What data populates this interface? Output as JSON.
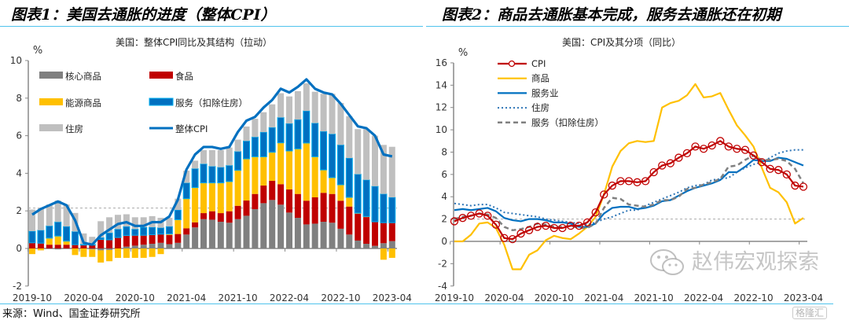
{
  "figures": {
    "left_title": "图表1：美国去通胀的进度（整体CPI）",
    "right_title": "图表2：商品去通胀基本完成，服务去通胀还在初期",
    "source": "来源：Wind、国金证券研究所"
  },
  "watermark": {
    "text": "赵伟宏观探索",
    "icon": "wechat-icon",
    "logo": "格隆汇"
  },
  "chart_data": [
    {
      "type": "bar",
      "stacked": true,
      "title": "美国：整体CPI同比及其结构（拉动）",
      "ylabel": "%",
      "ylim": [
        -2,
        10
      ],
      "yticks": [
        "-2",
        "0",
        "2",
        "4",
        "6",
        "8",
        "10"
      ],
      "xticks": [
        "2019-10",
        "2020-04",
        "2020-10",
        "2021-04",
        "2021-10",
        "2022-04",
        "2022-10",
        "2023-04"
      ],
      "reference_line": 2.15,
      "legend_placement": "top-left",
      "x": [
        "2019-10",
        "2019-11",
        "2019-12",
        "2020-01",
        "2020-02",
        "2020-03",
        "2020-04",
        "2020-05",
        "2020-06",
        "2020-07",
        "2020-08",
        "2020-09",
        "2020-10",
        "2020-11",
        "2020-12",
        "2021-01",
        "2021-02",
        "2021-03",
        "2021-04",
        "2021-05",
        "2021-06",
        "2021-07",
        "2021-08",
        "2021-09",
        "2021-10",
        "2021-11",
        "2021-12",
        "2022-01",
        "2022-02",
        "2022-03",
        "2022-04",
        "2022-05",
        "2022-06",
        "2022-07",
        "2022-08",
        "2022-09",
        "2022-10",
        "2022-11",
        "2022-12",
        "2023-01",
        "2023-02",
        "2023-03",
        "2023-04"
      ],
      "series": [
        {
          "name": "核心商品",
          "kind": "bar",
          "color": "#808080",
          "values": [
            0,
            0,
            0,
            -0.05,
            0,
            0,
            0,
            -0.05,
            -0.1,
            -0.08,
            0,
            0.1,
            0.15,
            0.2,
            0.25,
            0.3,
            0.23,
            0.3,
            0.74,
            1.12,
            1.56,
            1.53,
            1.42,
            1.37,
            1.56,
            1.74,
            2.09,
            2.41,
            2.58,
            2.33,
            1.91,
            1.63,
            1.28,
            1.32,
            1.42,
            1.37,
            1.05,
            0.74,
            0.42,
            0.25,
            0.14,
            0.28,
            0.39
          ]
        },
        {
          "name": "食品",
          "kind": "bar",
          "color": "#c00000",
          "values": [
            0.3,
            0.28,
            0.2,
            0.2,
            0.2,
            0.2,
            0.18,
            0.18,
            0.48,
            0.46,
            0.58,
            0.59,
            0.55,
            0.5,
            0.48,
            0.46,
            0.49,
            0.47,
            0.33,
            0.27,
            0.32,
            0.45,
            0.46,
            0.61,
            0.71,
            0.81,
            0.81,
            0.94,
            1.02,
            1.09,
            1.23,
            1.27,
            1.26,
            1.4,
            1.54,
            1.53,
            1.49,
            1.49,
            1.43,
            1.42,
            1.28,
            1.09,
            0.98
          ]
        },
        {
          "name": "能源商品",
          "kind": "bar",
          "color": "#ffc000",
          "values": [
            -0.3,
            -0.1,
            0.35,
            0.46,
            0.19,
            -0.35,
            -0.45,
            -0.4,
            -0.65,
            -0.6,
            -0.5,
            -0.5,
            -0.5,
            -0.5,
            -0.45,
            -0.3,
            0.05,
            0.76,
            1.58,
            1.85,
            1.61,
            1.51,
            1.61,
            1.58,
            1.89,
            2.22,
            1.98,
            1.53,
            1.52,
            2.2,
            2.05,
            2.4,
            3.07,
            2.16,
            1.22,
            0.87,
            0.85,
            0.49,
            0.03,
            0.03,
            0,
            -0.6,
            -0.5
          ]
        },
        {
          "name": "服务（扣除住房）",
          "kind": "bar",
          "color": "#0070c0",
          "values": [
            0.62,
            0.69,
            0.65,
            0.75,
            0.78,
            0.7,
            0.05,
            0.04,
            0.1,
            0.37,
            0.45,
            0.48,
            0.33,
            0.43,
            0.4,
            0.34,
            0.4,
            0.52,
            0.84,
            1.01,
            1.01,
            0.88,
            0.83,
            0.86,
            1.0,
            0.95,
            1.05,
            1.31,
            1.32,
            1.35,
            1.46,
            1.56,
            1.71,
            1.79,
            2.05,
            2.32,
            2.12,
            2.09,
            2.07,
            1.95,
            1.89,
            1.53,
            1.35
          ]
        },
        {
          "name": "住房",
          "kind": "bar",
          "color": "#bfbfbf",
          "values": [
            1.15,
            1.2,
            1.14,
            1.14,
            1.17,
            0.99,
            0.57,
            0.4,
            0.87,
            0.83,
            0.76,
            0.65,
            0.63,
            0.53,
            0.59,
            0.53,
            0.46,
            0.6,
            0.65,
            0.42,
            0.73,
            0.86,
            0.91,
            0.95,
            0.63,
            0.77,
            0.97,
            1.06,
            1.23,
            1.29,
            1.44,
            1.51,
            1.47,
            1.67,
            2.0,
            2.14,
            2.23,
            2.23,
            2.4,
            2.7,
            2.69,
            2.61,
            2.69
          ]
        },
        {
          "name": "整体CPI",
          "kind": "line",
          "color": "#0070c0",
          "values": [
            1.8,
            2.1,
            2.3,
            2.5,
            2.3,
            1.5,
            0.3,
            0.2,
            0.7,
            1.0,
            1.3,
            1.4,
            1.2,
            1.2,
            1.4,
            1.4,
            1.7,
            2.6,
            4.2,
            5.0,
            5.4,
            5.4,
            5.3,
            5.4,
            6.2,
            6.8,
            7.0,
            7.5,
            7.9,
            8.5,
            8.3,
            8.6,
            9.0,
            8.5,
            8.3,
            8.2,
            7.7,
            7.1,
            6.5,
            6.4,
            6.0,
            5.0,
            4.9
          ]
        }
      ]
    },
    {
      "type": "line",
      "title": "美国：CPI及其分项（同比）",
      "ylabel": "%",
      "ylim": [
        -4,
        16
      ],
      "yticks": [
        "-4",
        "-2",
        "0",
        "2",
        "4",
        "6",
        "8",
        "10",
        "12",
        "14",
        "16"
      ],
      "xticks": [
        "2019-10",
        "2020-04",
        "2020-10",
        "2021-04",
        "2021-10",
        "2022-04",
        "2022-10",
        "2023-04"
      ],
      "reference_line": 2,
      "legend_placement": "top-left",
      "x": [
        "2019-10",
        "2019-11",
        "2019-12",
        "2020-01",
        "2020-02",
        "2020-03",
        "2020-04",
        "2020-05",
        "2020-06",
        "2020-07",
        "2020-08",
        "2020-09",
        "2020-10",
        "2020-11",
        "2020-12",
        "2021-01",
        "2021-02",
        "2021-03",
        "2021-04",
        "2021-05",
        "2021-06",
        "2021-07",
        "2021-08",
        "2021-09",
        "2021-10",
        "2021-11",
        "2021-12",
        "2022-01",
        "2022-02",
        "2022-03",
        "2022-04",
        "2022-05",
        "2022-06",
        "2022-07",
        "2022-08",
        "2022-09",
        "2022-10",
        "2022-11",
        "2022-12",
        "2023-01",
        "2023-02",
        "2023-03",
        "2023-04"
      ],
      "series": [
        {
          "name": "CPI",
          "style": "solid-markers",
          "color": "#c00000",
          "values": [
            1.8,
            2.1,
            2.3,
            2.5,
            2.3,
            1.5,
            0.3,
            0.2,
            0.7,
            1.0,
            1.3,
            1.4,
            1.2,
            1.2,
            1.4,
            1.4,
            1.7,
            2.6,
            4.2,
            5.0,
            5.4,
            5.4,
            5.3,
            5.4,
            6.2,
            6.8,
            7.0,
            7.5,
            7.9,
            8.5,
            8.3,
            8.6,
            9.0,
            8.5,
            8.3,
            8.2,
            7.7,
            7.1,
            6.5,
            6.4,
            6.0,
            5.0,
            4.9
          ]
        },
        {
          "name": "商品",
          "style": "solid",
          "color": "#ffc000",
          "values": [
            0,
            0,
            0.6,
            1.6,
            1.7,
            1.2,
            -0.3,
            -2.5,
            -2.5,
            -1.2,
            -0.8,
            0.1,
            0.5,
            0.3,
            0.2,
            0.7,
            1.3,
            2.2,
            4.2,
            6.7,
            8.1,
            8.8,
            9.0,
            8.9,
            9.0,
            12.0,
            12.4,
            12.6,
            13.1,
            14.1,
            12.9,
            13.0,
            13.3,
            11.8,
            10.4,
            9.5,
            8.5,
            6.6,
            4.8,
            4.4,
            3.5,
            1.6,
            2.1
          ]
        },
        {
          "name": "服务业",
          "style": "solid",
          "color": "#0070c0",
          "values": [
            2.8,
            2.9,
            2.8,
            2.9,
            3.0,
            2.7,
            2.1,
            1.9,
            1.8,
            2.0,
            2.0,
            1.9,
            1.7,
            1.7,
            1.6,
            1.3,
            1.3,
            1.6,
            2.5,
            3.0,
            3.1,
            3.1,
            2.9,
            3.0,
            3.2,
            3.6,
            3.7,
            4.1,
            4.5,
            4.8,
            5.0,
            5.2,
            5.5,
            6.2,
            6.2,
            6.7,
            7.3,
            7.2,
            7.2,
            7.5,
            7.4,
            7.1,
            6.8
          ]
        },
        {
          "name": "住房",
          "style": "dotted",
          "color": "#2e75b6",
          "values": [
            3.4,
            3.3,
            3.2,
            3.3,
            3.3,
            3.0,
            2.6,
            2.5,
            2.4,
            2.3,
            2.2,
            2.0,
            1.9,
            1.8,
            1.7,
            1.6,
            1.5,
            1.7,
            2.0,
            2.2,
            2.5,
            2.8,
            2.8,
            3.2,
            3.5,
            3.8,
            4.1,
            4.4,
            4.8,
            5.0,
            5.1,
            5.5,
            5.6,
            5.7,
            6.2,
            6.6,
            6.9,
            7.1,
            7.5,
            7.9,
            8.1,
            8.2,
            8.2
          ]
        },
        {
          "name": "服务（扣除住房）",
          "style": "dashed",
          "color": "#808080",
          "values": [
            2.0,
            2.2,
            2.3,
            2.5,
            2.4,
            2.1,
            1.3,
            1.0,
            1.1,
            1.3,
            1.6,
            1.5,
            1.3,
            1.3,
            1.4,
            1.2,
            1.2,
            1.6,
            3.0,
            3.9,
            3.8,
            3.3,
            3.2,
            3.1,
            3.3,
            3.7,
            3.7,
            4.0,
            4.7,
            4.8,
            5.1,
            5.3,
            5.6,
            6.7,
            6.8,
            7.3,
            7.7,
            7.3,
            7.3,
            7.4,
            7.2,
            6.5,
            5.2
          ]
        }
      ]
    }
  ]
}
